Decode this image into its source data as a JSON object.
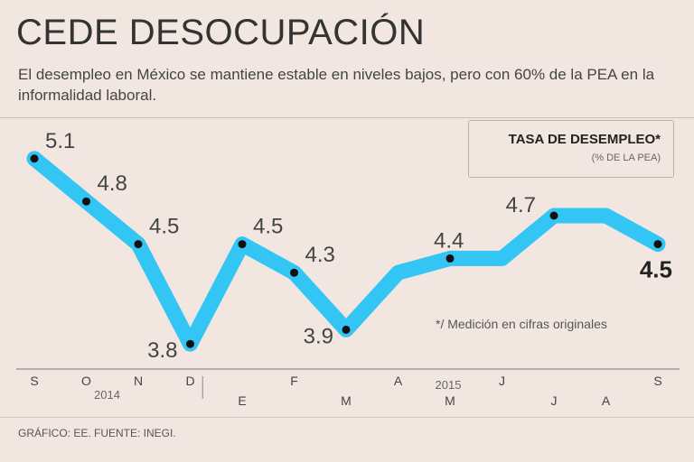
{
  "header": {
    "title": "CEDE DESOCUPACIÓN",
    "subtitle": "El desempleo en México se mantiene estable en niveles bajos, pero con 60% de la PEA en la informalidad laboral."
  },
  "legend": {
    "title": "TASA DE DESEMPLEO*",
    "subtitle": "(% DE LA PEA)"
  },
  "footnote": "*/ Medición en cifras originales",
  "source": "GRÁFICO: EE.  FUENTE: INEGI.",
  "colors": {
    "line": "#33c6f4",
    "background": "#f2e7e0",
    "marker": "#111111"
  },
  "chart_data": {
    "type": "line",
    "title": "TASA DE DESEMPLEO*",
    "ylabel": "% DE LA PEA",
    "categories": [
      "S",
      "O",
      "N",
      "D",
      "E",
      "F",
      "M",
      "A",
      "M",
      "J",
      "J",
      "A",
      "S"
    ],
    "values": [
      5.1,
      4.8,
      4.5,
      3.8,
      4.5,
      4.3,
      3.9,
      4.3,
      4.4,
      4.4,
      4.7,
      4.7,
      4.5
    ],
    "labels": [
      "5.1",
      "4.8",
      "4.5",
      "3.8",
      "4.5",
      "4.3",
      "3.9",
      "",
      "4.4",
      "",
      "4.7",
      "",
      "4.5"
    ],
    "markers": [
      true,
      true,
      true,
      true,
      true,
      true,
      true,
      false,
      true,
      false,
      true,
      false,
      true
    ],
    "years": [
      {
        "label": "2014",
        "start_index": 0
      },
      {
        "label": "2015",
        "start_index": 4
      }
    ],
    "ylim": [
      3.7,
      5.2
    ]
  }
}
